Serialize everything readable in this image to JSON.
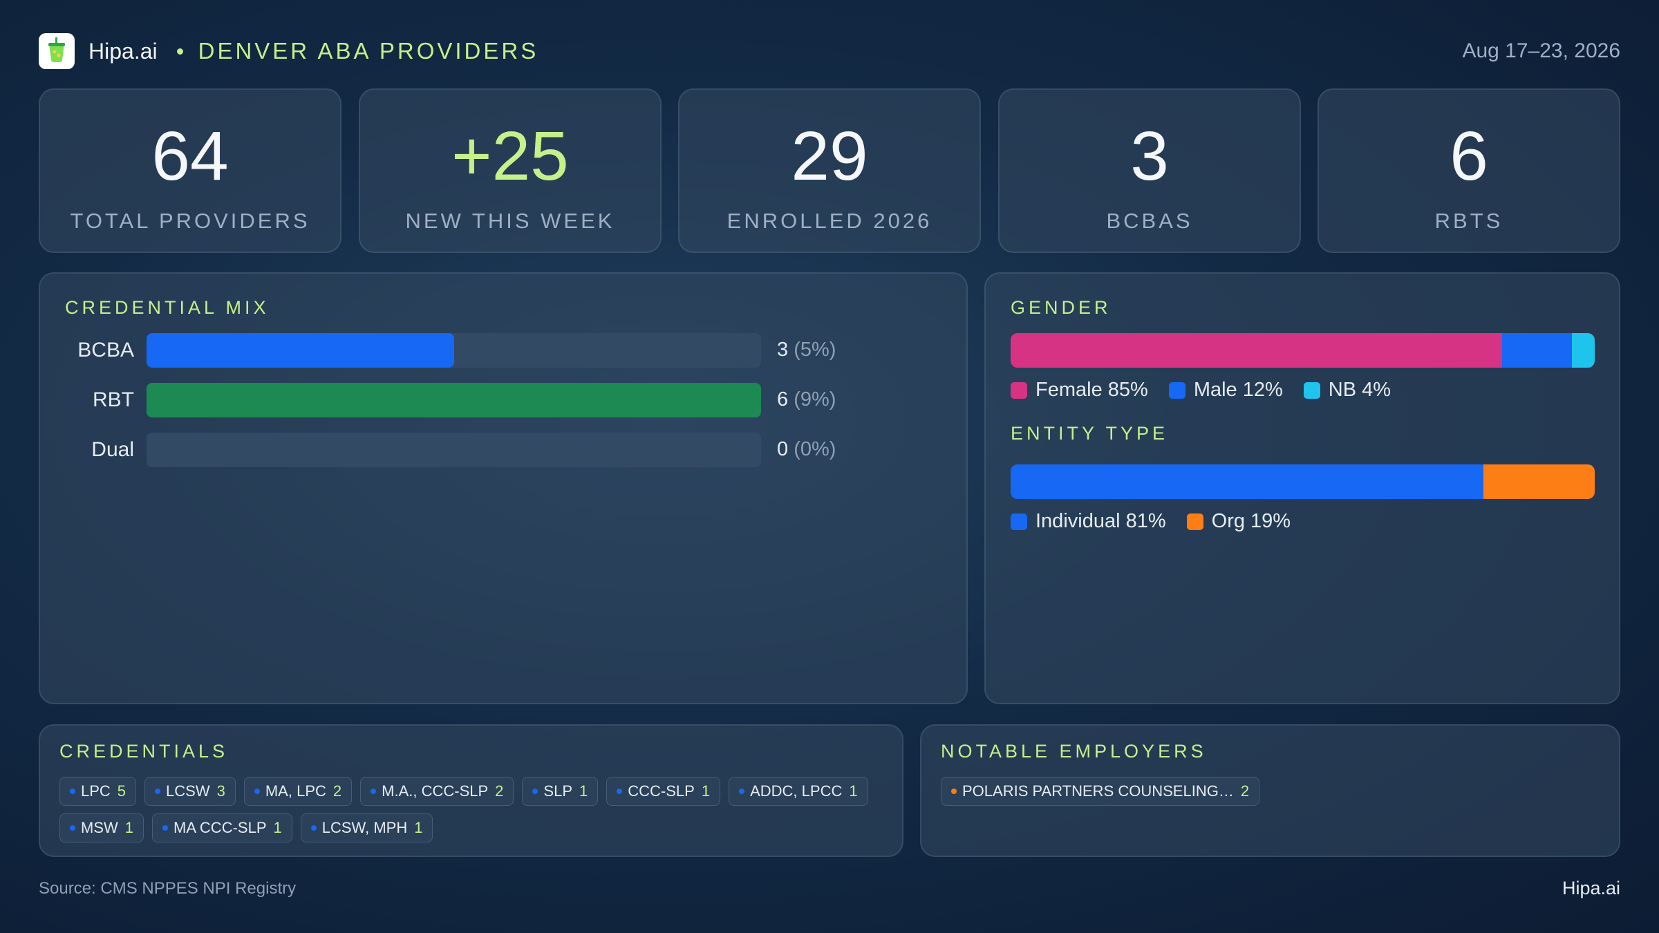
{
  "header": {
    "brand": "Hipa.ai",
    "title": "DENVER ABA PROVIDERS",
    "date_range": "Aug 17–23, 2026"
  },
  "kpis": [
    {
      "value": "64",
      "label": "TOTAL PROVIDERS"
    },
    {
      "value": "+25",
      "label": "NEW THIS WEEK"
    },
    {
      "value": "29",
      "label": "ENROLLED 2026"
    },
    {
      "value": "3",
      "label": "BCBAS"
    },
    {
      "value": "6",
      "label": "RBTS"
    }
  ],
  "chart_data": [
    {
      "type": "bar",
      "title": "CREDENTIAL MIX",
      "orientation": "horizontal",
      "categories": [
        "BCBA",
        "RBT",
        "Dual"
      ],
      "values": [
        3,
        6,
        0
      ],
      "value_labels": [
        "3",
        "6",
        "0"
      ],
      "percent_labels": [
        "(5%)",
        "(9%)",
        "(0%)"
      ],
      "xlim": [
        0,
        6
      ],
      "colors": [
        "#1668f5",
        "#1c8a52",
        "#334a64"
      ]
    },
    {
      "type": "bar",
      "stacked": true,
      "orientation": "horizontal",
      "title": "GENDER",
      "series": [
        {
          "name": "Female",
          "value": 85,
          "label": "Female 85%",
          "color": "#d63384"
        },
        {
          "name": "Male",
          "value": 12,
          "label": "Male 12%",
          "color": "#1668f5"
        },
        {
          "name": "NB",
          "value": 4,
          "label": "NB 4%",
          "color": "#1ec4ec"
        }
      ]
    },
    {
      "type": "bar",
      "stacked": true,
      "orientation": "horizontal",
      "title": "ENTITY TYPE",
      "series": [
        {
          "name": "Individual",
          "value": 81,
          "label": "Individual 81%",
          "color": "#1668f5"
        },
        {
          "name": "Org",
          "value": 19,
          "label": "Org 19%",
          "color": "#fd7e14"
        }
      ]
    }
  ],
  "credentials": {
    "title": "CREDENTIALS",
    "dot_color": "#1668f5",
    "items": [
      {
        "name": "LPC",
        "count": "5"
      },
      {
        "name": "LCSW",
        "count": "3"
      },
      {
        "name": "MA, LPC",
        "count": "2"
      },
      {
        "name": "M.A., CCC-SLP",
        "count": "2"
      },
      {
        "name": "SLP",
        "count": "1"
      },
      {
        "name": "CCC-SLP",
        "count": "1"
      },
      {
        "name": "ADDC, LPCC",
        "count": "1"
      },
      {
        "name": "MSW",
        "count": "1"
      },
      {
        "name": "MA CCC-SLP",
        "count": "1"
      },
      {
        "name": "LCSW, MPH",
        "count": "1"
      }
    ]
  },
  "employers": {
    "title": "NOTABLE EMPLOYERS",
    "dot_color": "#fd7e14",
    "items": [
      {
        "name": "POLARIS PARTNERS COUNSELING…",
        "count": "2"
      }
    ]
  },
  "footer": {
    "source": "Source: CMS NPPES NPI Registry",
    "brand": "Hipa.ai"
  },
  "colors": {
    "accent": "#c6f08a",
    "background": "#132a45"
  }
}
